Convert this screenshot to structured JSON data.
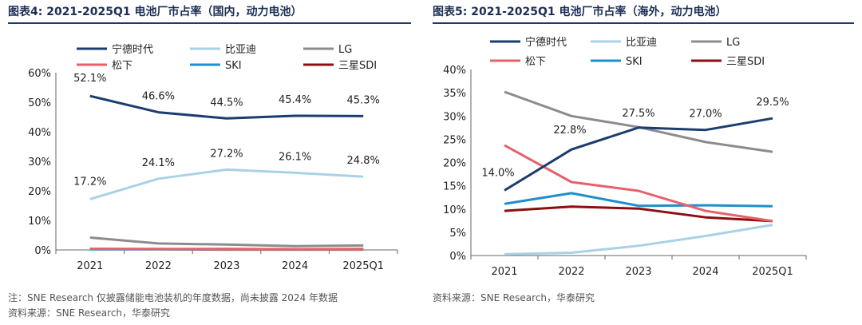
{
  "left": {
    "title": "图表4:  2021-2025Q1 电池厂市占率（国内，动力电池）",
    "notes": [
      "注：SNE Research 仅披露储能电池装机的年度数据，尚未披露 2024 年数据",
      "资料来源：SNE Research，华泰研究"
    ]
  },
  "right": {
    "title": "图表5:  2021-2025Q1 电池厂市占率（海外，动力电池）",
    "notes": [
      "资料来源：SNE Research，华泰研究"
    ]
  },
  "chart_data": [
    {
      "type": "line",
      "title": "图表4:  2021-2025Q1 电池厂市占率（国内，动力电池）",
      "x": [
        "2021",
        "2022",
        "2023",
        "2024",
        "2025Q1"
      ],
      "ylim": [
        0,
        60
      ],
      "yticks": [
        "0%",
        "10%",
        "20%",
        "30%",
        "40%",
        "50%",
        "60%"
      ],
      "legend_position": "top",
      "grid": false,
      "series": [
        {
          "name": "宁德时代",
          "color": "#1b3d6e",
          "values": [
            52.1,
            46.6,
            44.5,
            45.4,
            45.3
          ],
          "labels": [
            "52.1%",
            "46.6%",
            "44.5%",
            "45.4%",
            "45.3%"
          ]
        },
        {
          "name": "比亚迪",
          "color": "#a9d2e6",
          "values": [
            17.2,
            24.1,
            27.2,
            26.1,
            24.8
          ],
          "labels": [
            "17.2%",
            "24.1%",
            "27.2%",
            "26.1%",
            "24.8%"
          ]
        },
        {
          "name": "LG",
          "color": "#8c8c8c",
          "values": [
            4.2,
            2.2,
            1.8,
            1.3,
            1.5
          ]
        },
        {
          "name": "松下",
          "color": "#e8606a",
          "values": [
            0.4,
            0.3,
            0.2,
            0.2,
            0.2
          ]
        },
        {
          "name": "SKI",
          "color": "#1e8fcc",
          "values": [
            0.2,
            0.2,
            0.1,
            0.1,
            0.1
          ]
        },
        {
          "name": "三星SDI",
          "color": "#8b0f0f",
          "values": [
            0.3,
            0.3,
            0.3,
            0.2,
            0.3
          ]
        }
      ]
    },
    {
      "type": "line",
      "title": "图表5:  2021-2025Q1 电池厂市占率（海外，动力电池）",
      "x": [
        "2021",
        "2022",
        "2023",
        "2024",
        "2025Q1"
      ],
      "ylim": [
        0,
        40
      ],
      "yticks": [
        "0%",
        "5%",
        "10%",
        "15%",
        "20%",
        "25%",
        "30%",
        "35%",
        "40%"
      ],
      "legend_position": "top",
      "grid": false,
      "series": [
        {
          "name": "宁德时代",
          "color": "#1b3d6e",
          "values": [
            14.0,
            22.8,
            27.5,
            27.0,
            29.5
          ],
          "labels": [
            "14.0%",
            "22.8%",
            "27.5%",
            "27.0%",
            "29.5%"
          ]
        },
        {
          "name": "比亚迪",
          "color": "#a9d2e6",
          "values": [
            0.3,
            0.6,
            2.1,
            4.2,
            6.6
          ]
        },
        {
          "name": "LG",
          "color": "#8c8c8c",
          "values": [
            35.2,
            30.0,
            27.6,
            24.4,
            22.3
          ]
        },
        {
          "name": "松下",
          "color": "#e8606a",
          "values": [
            23.7,
            15.8,
            13.9,
            9.6,
            7.4
          ]
        },
        {
          "name": "SKI",
          "color": "#1e8fcc",
          "values": [
            11.1,
            13.4,
            10.7,
            10.8,
            10.6
          ]
        },
        {
          "name": "三星SDI",
          "color": "#8b0f0f",
          "values": [
            9.6,
            10.5,
            10.1,
            8.2,
            7.4
          ]
        }
      ]
    }
  ]
}
